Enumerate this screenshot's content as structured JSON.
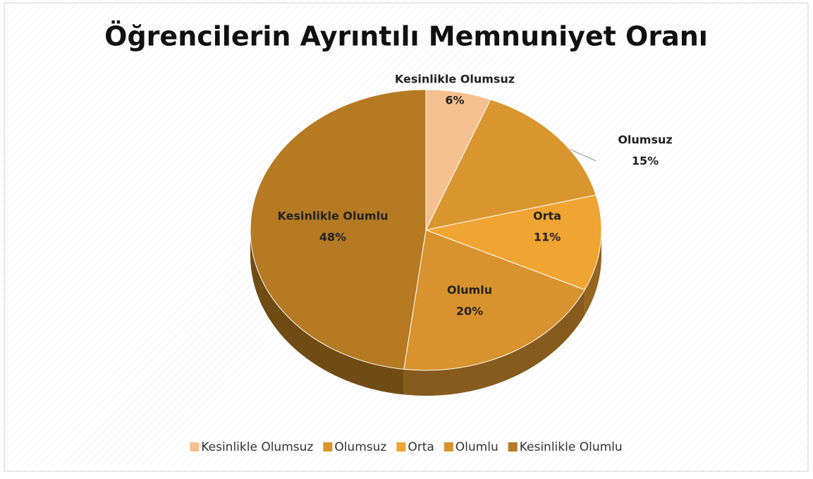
{
  "chart_data": {
    "type": "pie",
    "title": "Öğrencilerin Ayrıntılı Memnuniyet Oranı",
    "categories": [
      "Kesinlikle Olumsuz",
      "Olumsuz",
      "Orta",
      "Olumlu",
      "Kesinlikle Olumlu"
    ],
    "values": [
      6,
      15,
      11,
      20,
      48
    ],
    "value_labels": [
      "6%",
      "15%",
      "11%",
      "20%",
      "48%"
    ],
    "colors": [
      "#f5c08f",
      "#da962e",
      "#f0a432",
      "#d8932e",
      "#b57a22"
    ],
    "legend": "bottom"
  }
}
